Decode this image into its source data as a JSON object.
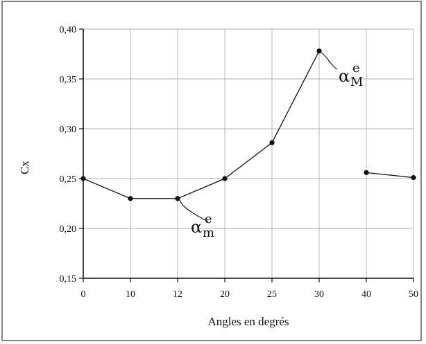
{
  "chart_data": {
    "type": "line",
    "title": "",
    "xlabel": "Angles en degrés",
    "ylabel": "Cx",
    "categories": [
      "0",
      "10",
      "12",
      "20",
      "25",
      "30",
      "40",
      "50"
    ],
    "ylim": [
      0.15,
      0.4
    ],
    "yticks": [
      "0,15",
      "0,20",
      "0,25",
      "0,30",
      "0,35",
      "0,40"
    ],
    "grid": true,
    "series": [
      {
        "segments": [
          {
            "indices": [
              0,
              1,
              2,
              3,
              4,
              5
            ],
            "values": [
              0.25,
              0.23,
              0.23,
              0.25,
              0.286,
              0.378
            ]
          },
          {
            "indices": [
              6,
              7
            ],
            "values": [
              0.256,
              0.251
            ]
          }
        ]
      }
    ],
    "annotations": [
      {
        "base": "α",
        "sub": "m",
        "sup": "e",
        "point_index": 2
      },
      {
        "base": "α",
        "sub": "M",
        "sup": "e",
        "point_index": 5
      }
    ]
  }
}
